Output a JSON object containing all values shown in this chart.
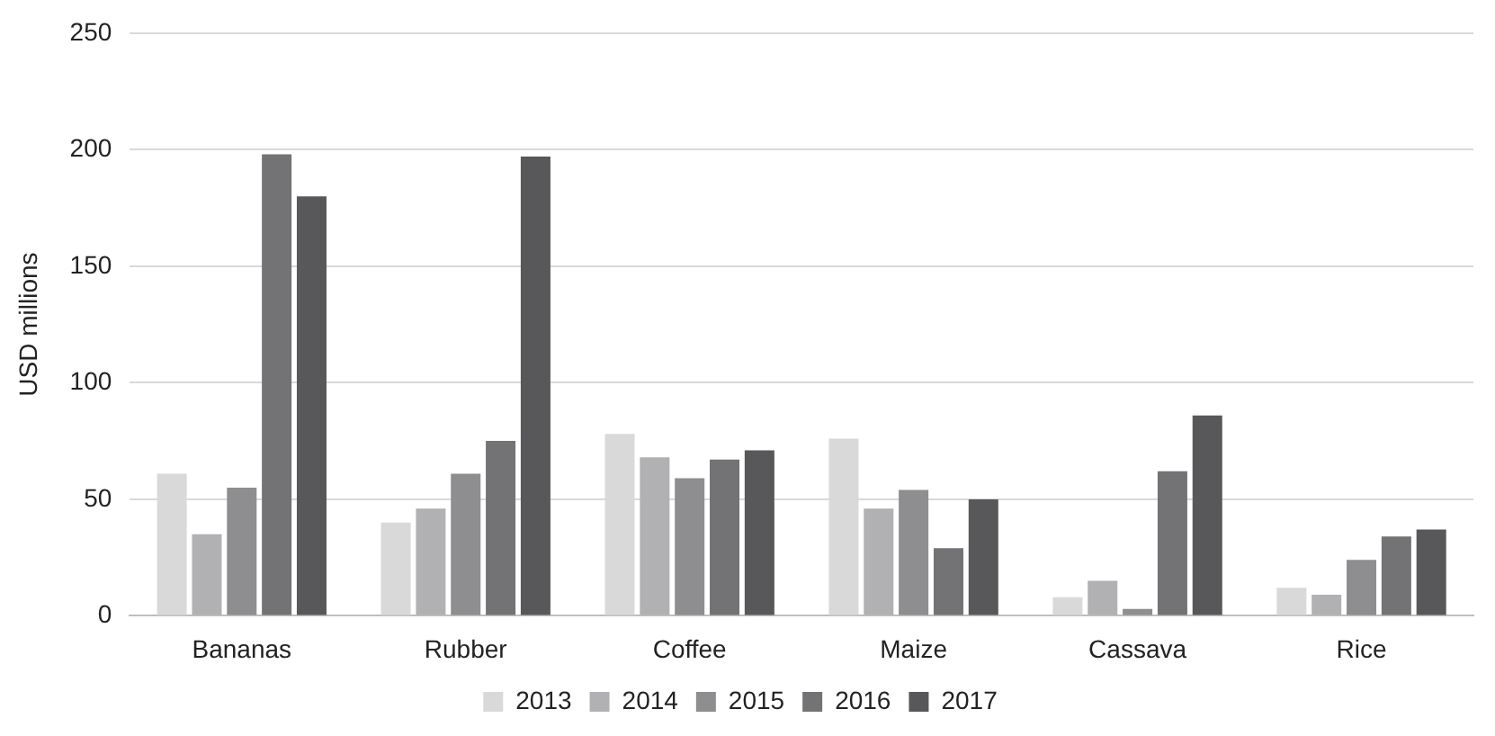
{
  "chart_data": {
    "type": "bar",
    "ylabel": "USD millions",
    "categories": [
      "Bananas",
      "Rubber",
      "Coffee",
      "Maize",
      "Cassava",
      "Rice"
    ],
    "series": [
      {
        "name": "2013",
        "color": "#d9d9d9",
        "values": [
          61,
          40,
          78,
          76,
          8,
          12
        ]
      },
      {
        "name": "2014",
        "color": "#b1b1b3",
        "values": [
          35,
          46,
          68,
          46,
          15,
          9
        ]
      },
      {
        "name": "2015",
        "color": "#8e8e90",
        "values": [
          55,
          61,
          59,
          54,
          3,
          24
        ]
      },
      {
        "name": "2016",
        "color": "#737375",
        "values": [
          198,
          75,
          67,
          29,
          62,
          34
        ]
      },
      {
        "name": "2017",
        "color": "#58585a",
        "values": [
          180,
          197,
          71,
          50,
          86,
          37
        ]
      }
    ],
    "ylim": [
      0,
      250
    ],
    "yticks": [
      0,
      50,
      100,
      150,
      200,
      250
    ],
    "grid": "y",
    "legend": "bottom"
  }
}
